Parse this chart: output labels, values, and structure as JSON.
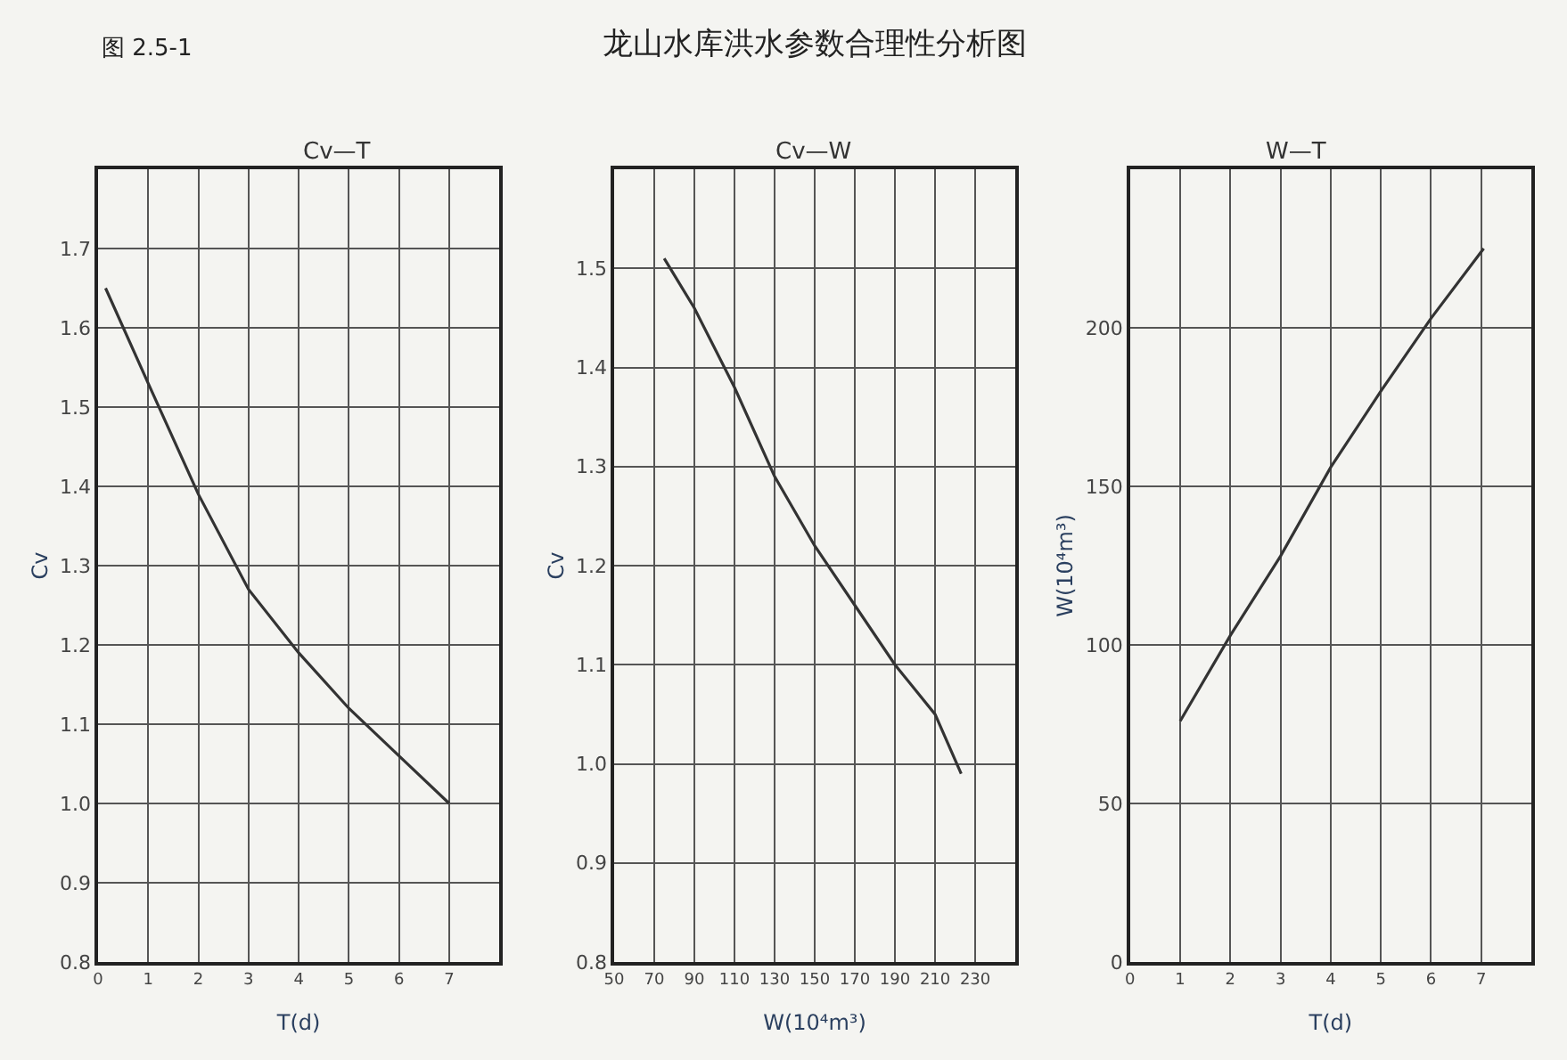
{
  "chart_data": [
    {
      "type": "line",
      "title": "Cv—T",
      "xlabel": "T(d)",
      "ylabel": "Cv",
      "annotations": [
        "图 2.5-1",
        "龙山水库洪水参数合理性分析图"
      ],
      "x": [
        0.15,
        1,
        2,
        3,
        4,
        5,
        6,
        7
      ],
      "series": [
        {
          "color": "#333333",
          "values": [
            1.65,
            1.53,
            1.39,
            1.27,
            1.19,
            1.12,
            1.06,
            1.0
          ]
        }
      ],
      "xlim": [
        0,
        8
      ],
      "xticks": [
        0,
        1,
        2,
        3,
        4,
        5,
        6,
        7
      ],
      "ylim": [
        0.8,
        1.8
      ],
      "yticks": [
        0.8,
        0.9,
        {
          "value": 1.0,
          "label": "1.0"
        },
        1.1,
        1.2,
        1.3,
        1.4,
        1.5,
        1.6,
        1.7
      ],
      "grid": true,
      "line_style": "solid"
    },
    {
      "type": "line",
      "title": "Cv—W",
      "xlabel": "W(10⁴m³)",
      "ylabel": "Cv",
      "x": [
        75,
        90,
        110,
        130,
        150,
        170,
        190,
        210,
        223
      ],
      "series": [
        {
          "color": "#333333",
          "values": [
            1.51,
            1.46,
            1.38,
            1.29,
            1.22,
            1.16,
            1.1,
            1.05,
            0.99
          ]
        }
      ],
      "xlim": [
        50,
        250
      ],
      "xticks": [
        50,
        70,
        90,
        110,
        130,
        150,
        170,
        190,
        210,
        230
      ],
      "ylim": [
        0.8,
        1.6
      ],
      "yticks": [
        0.8,
        0.9,
        {
          "value": 1.0,
          "label": "1.0"
        },
        1.1,
        1.2,
        1.3,
        1.4,
        1.5
      ],
      "grid": true,
      "line_style": "solid"
    },
    {
      "type": "line",
      "title": "W—T",
      "xlabel": "T(d)",
      "ylabel": "W(10⁴m³)",
      "x": [
        1,
        2,
        3,
        4,
        5,
        6,
        7.05
      ],
      "series": [
        {
          "color": "#333333",
          "values": [
            76,
            103,
            128,
            156,
            180,
            203,
            225
          ]
        }
      ],
      "xlim": [
        0,
        8
      ],
      "xticks": [
        0,
        1,
        2,
        3,
        4,
        5,
        6,
        7
      ],
      "ylim": [
        0,
        250
      ],
      "yticks": [
        0,
        50,
        100,
        150,
        200
      ],
      "grid": true,
      "line_style": "solid"
    }
  ]
}
